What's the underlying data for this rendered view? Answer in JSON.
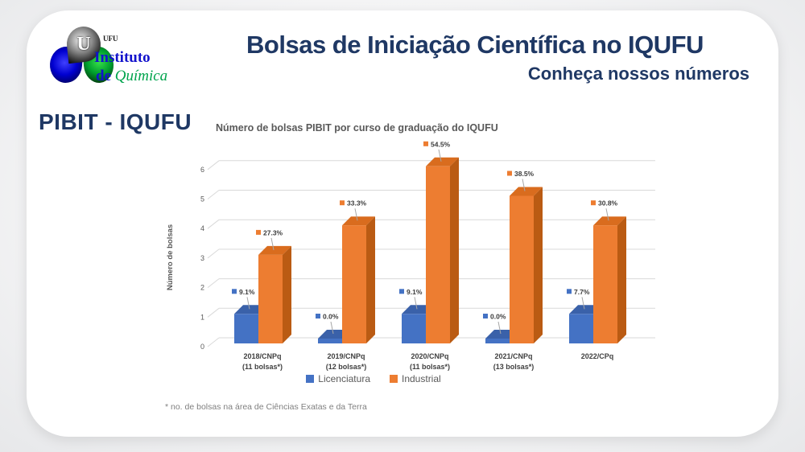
{
  "page": {
    "background": "#f0f1f2",
    "card_color": "#ffffff",
    "accent_navy": "#1F3864"
  },
  "logo": {
    "org": "UFU",
    "emblem": "U",
    "line1": "Instituto",
    "line2_word1": "de",
    "line2_word2": "Química",
    "colors": {
      "blue": "#1212cc",
      "green": "#00a44d"
    }
  },
  "header": {
    "title": "Bolsas de Iniciação Científica no IQUFU",
    "subtitle": "Conheça nossos números"
  },
  "section": {
    "title": "PIBIT - IQUFU"
  },
  "footnote": "* no. de bolsas na área de Ciências Exatas e da Terra",
  "chart_data": {
    "type": "bar",
    "style": "3d-clustered-column",
    "title": "Número de bolsas PIBIT por curso de graduação do IQUFU",
    "xlabel": "",
    "ylabel": "Número de bolsas",
    "ylim": [
      0,
      6
    ],
    "yticks": [
      0,
      1,
      2,
      3,
      4,
      5,
      6
    ],
    "grid": true,
    "legend_position": "bottom",
    "categories": [
      "2018/CNPq",
      "2019/CNPq",
      "2020/CNPq",
      "2021/CNPq",
      "2022/CPq"
    ],
    "category_sublabels": [
      "(11 bolsas*)",
      "(12 bolsas*)",
      "(11 bolsas*)",
      "(13 bolsas*)",
      ""
    ],
    "series": [
      {
        "name": "Licenciatura",
        "color": "#4472C4",
        "color_top": "#3A61A9",
        "color_side": "#2F5495",
        "values": [
          1,
          0,
          1,
          0,
          1
        ],
        "data_labels": [
          "9.1%",
          "0.0%",
          "9.1%",
          "0.0%",
          "7.7%"
        ]
      },
      {
        "name": "Industrial",
        "color": "#ED7D31",
        "color_top": "#D96C1E",
        "color_side": "#BA5B13",
        "values": [
          3,
          4,
          6,
          5,
          4
        ],
        "data_labels": [
          "27.3%",
          "33.3%",
          "54.5%",
          "38.5%",
          "30.8%"
        ]
      }
    ]
  }
}
